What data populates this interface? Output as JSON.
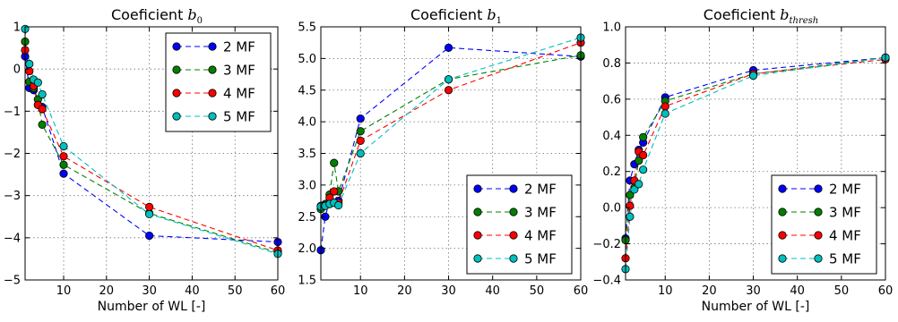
{
  "chart_data": [
    {
      "type": "line",
      "title_text": "Coeficient",
      "title_sub": "0",
      "xlabel": "Number of WL [-]",
      "ylabel": "",
      "xlim": [
        1,
        60
      ],
      "ylim": [
        -5,
        1
      ],
      "xticks": [
        10,
        20,
        30,
        40,
        50,
        60
      ],
      "xtick_labels": [
        "10",
        "20",
        "30",
        "40",
        "50",
        "60"
      ],
      "yticks": [
        -5,
        -4,
        -3,
        -2,
        -1,
        0,
        1
      ],
      "ytick_labels": [
        "−5",
        "−4",
        "−3",
        "−2",
        "−1",
        "0",
        "1"
      ],
      "grid": true,
      "legend_position": "upper-right",
      "series": [
        {
          "name": "2 MF",
          "color": "#0000ff",
          "x": [
            1,
            2,
            3,
            4,
            5,
            10,
            30,
            60
          ],
          "values": [
            0.3,
            -0.45,
            -0.5,
            -0.85,
            -0.9,
            -2.48,
            -3.95,
            -4.1
          ]
        },
        {
          "name": "3 MF",
          "color": "#008000",
          "x": [
            1,
            2,
            3,
            4,
            5,
            10,
            30,
            60
          ],
          "values": [
            0.65,
            -0.3,
            -0.45,
            -0.72,
            -1.32,
            -2.27,
            -3.42,
            -4.35
          ]
        },
        {
          "name": "4 MF",
          "color": "#ff0000",
          "x": [
            1,
            2,
            3,
            4,
            5,
            10,
            30,
            60
          ],
          "values": [
            0.45,
            -0.05,
            -0.4,
            -0.85,
            -0.95,
            -2.07,
            -3.27,
            -4.3
          ]
        },
        {
          "name": "5 MF",
          "color": "#00bfbf",
          "x": [
            1,
            2,
            3,
            4,
            5,
            10,
            30,
            60
          ],
          "values": [
            0.95,
            0.12,
            -0.25,
            -0.32,
            -0.6,
            -1.83,
            -3.44,
            -4.38
          ]
        }
      ]
    },
    {
      "type": "line",
      "title_text": "Coeficient",
      "title_sub": "1",
      "xlabel": "",
      "ylabel": "",
      "xlim": [
        1,
        60
      ],
      "ylim": [
        1.5,
        5.5
      ],
      "xticks": [
        10,
        20,
        30,
        40,
        50,
        60
      ],
      "xtick_labels": [
        "10",
        "20",
        "30",
        "40",
        "50",
        "60"
      ],
      "yticks": [
        1.5,
        2.0,
        2.5,
        3.0,
        3.5,
        4.0,
        4.5,
        5.0,
        5.5
      ],
      "ytick_labels": [
        "1.5",
        "2.0",
        "2.5",
        "3.0",
        "3.5",
        "4.0",
        "4.5",
        "5.0",
        "5.5"
      ],
      "grid": true,
      "legend_position": "lower-right",
      "series": [
        {
          "name": "2 MF",
          "color": "#0000ff",
          "x": [
            1,
            2,
            3,
            4,
            5,
            10,
            30,
            60
          ],
          "values": [
            1.97,
            2.5,
            2.75,
            2.72,
            2.75,
            4.05,
            5.17,
            5.03
          ]
        },
        {
          "name": "3 MF",
          "color": "#008000",
          "x": [
            1,
            2,
            3,
            4,
            5,
            10,
            30,
            60
          ],
          "values": [
            2.62,
            2.7,
            2.85,
            3.35,
            2.9,
            3.85,
            4.67,
            5.05
          ]
        },
        {
          "name": "4 MF",
          "color": "#ff0000",
          "x": [
            1,
            2,
            3,
            4,
            5,
            10,
            30,
            60
          ],
          "values": [
            2.67,
            2.68,
            2.8,
            2.9,
            2.72,
            3.7,
            4.5,
            5.25
          ]
        },
        {
          "name": "5 MF",
          "color": "#00bfbf",
          "x": [
            1,
            2,
            3,
            4,
            5,
            10,
            30,
            60
          ],
          "values": [
            2.66,
            2.67,
            2.7,
            2.72,
            2.68,
            3.5,
            4.67,
            5.33
          ]
        }
      ]
    },
    {
      "type": "line",
      "title_text": "Coeficient",
      "title_sub": "thresh",
      "xlabel": "Number of WL [-]",
      "ylabel": "",
      "xlim": [
        1,
        60
      ],
      "ylim": [
        -0.4,
        1.0
      ],
      "xticks": [
        10,
        20,
        30,
        40,
        50,
        60
      ],
      "xtick_labels": [
        "10",
        "20",
        "30",
        "40",
        "50",
        "60"
      ],
      "yticks": [
        -0.4,
        -0.2,
        0.0,
        0.2,
        0.4,
        0.6,
        0.8,
        1.0
      ],
      "ytick_labels": [
        "−0.4",
        "−0.2",
        "0.0",
        "0.2",
        "0.4",
        "0.6",
        "0.8",
        "1.0"
      ],
      "grid": true,
      "legend_position": "lower-right",
      "series": [
        {
          "name": "2 MF",
          "color": "#0000ff",
          "x": [
            1,
            2,
            3,
            4,
            5,
            10,
            30,
            60
          ],
          "values": [
            -0.17,
            0.15,
            0.24,
            0.32,
            0.36,
            0.61,
            0.76,
            0.83
          ]
        },
        {
          "name": "3 MF",
          "color": "#008000",
          "x": [
            1,
            2,
            3,
            4,
            5,
            10,
            30,
            60
          ],
          "values": [
            -0.18,
            0.07,
            0.11,
            0.26,
            0.39,
            0.59,
            0.74,
            0.83
          ]
        },
        {
          "name": "4 MF",
          "color": "#ff0000",
          "x": [
            1,
            2,
            3,
            4,
            5,
            10,
            30,
            60
          ],
          "values": [
            -0.28,
            0.01,
            0.15,
            0.31,
            0.29,
            0.56,
            0.74,
            0.82
          ]
        },
        {
          "name": "5 MF",
          "color": "#00bfbf",
          "x": [
            1,
            2,
            3,
            4,
            5,
            10,
            30,
            60
          ],
          "values": [
            -0.34,
            -0.05,
            0.1,
            0.13,
            0.21,
            0.52,
            0.73,
            0.83
          ]
        }
      ]
    }
  ]
}
